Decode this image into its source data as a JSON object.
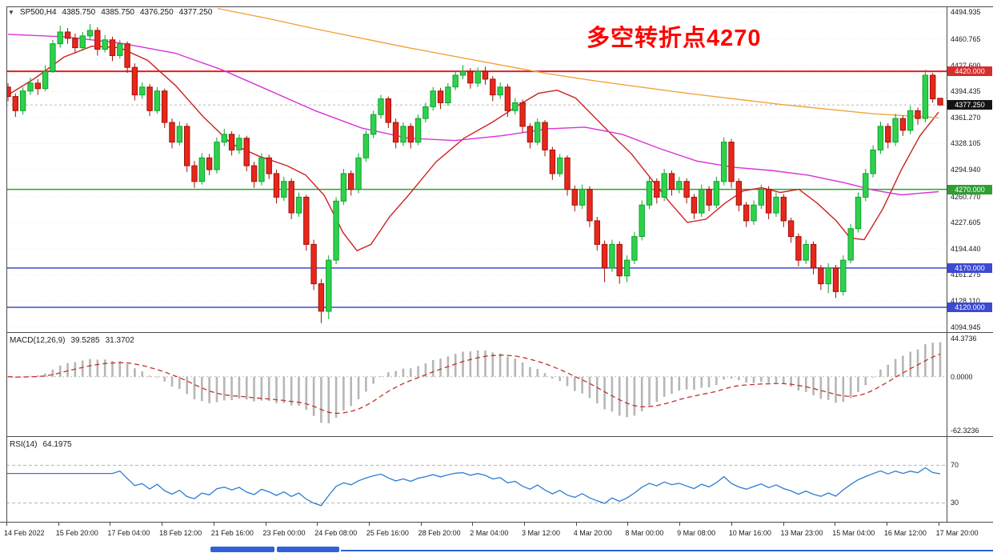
{
  "legend": {
    "symbol_period": "SP500,H4",
    "open": "4385.750",
    "high": "4385.750",
    "low": "4376.250",
    "close": "4377.250"
  },
  "annotation": {
    "text": "多空转折点4270",
    "color": "#ff0000"
  },
  "chart_data": {
    "type": "candlestick",
    "symbol": "SP500",
    "timeframe": "H4",
    "grid": "horizontal-dotted",
    "legend_position": "top-left",
    "price_axis": {
      "view_max": 4501.5,
      "view_min": 4088.5,
      "labels": [
        "4494.935",
        "4460.765",
        "4427.600",
        "4394.435",
        "4361.270",
        "4328.105",
        "4294.940",
        "4260.770",
        "4227.605",
        "4194.440",
        "4161.275",
        "4128.110",
        "4094.945"
      ]
    },
    "time_axis": {
      "labels": [
        "14 Feb 2022",
        "15 Feb 20:00",
        "17 Feb 04:00",
        "18 Feb 12:00",
        "21 Feb 16:00",
        "23 Feb 00:00",
        "24 Feb 08:00",
        "25 Feb 16:00",
        "28 Feb 20:00",
        "2 Mar 04:00",
        "3 Mar 12:00",
        "4 Mar 20:00",
        "8 Mar 00:00",
        "9 Mar 08:00",
        "10 Mar 16:00",
        "13 Mar 23:00",
        "15 Mar 04:00",
        "16 Mar 12:00",
        "17 Mar 20:00"
      ]
    },
    "up_color": "#2fd14c",
    "up_stroke": "#0da32e",
    "down_color": "#e8271c",
    "down_stroke": "#a01208",
    "candles": [
      [
        4400,
        4405,
        4382,
        4388
      ],
      [
        4388,
        4392,
        4362,
        4370
      ],
      [
        4370,
        4400,
        4365,
        4395
      ],
      [
        4395,
        4412,
        4390,
        4405
      ],
      [
        4405,
        4410,
        4390,
        4398
      ],
      [
        4398,
        4428,
        4395,
        4420
      ],
      [
        4420,
        4460,
        4418,
        4455
      ],
      [
        4455,
        4478,
        4450,
        4470
      ],
      [
        4470,
        4475,
        4455,
        4462
      ],
      [
        4462,
        4468,
        4443,
        4450
      ],
      [
        4450,
        4470,
        4446,
        4465
      ],
      [
        4465,
        4480,
        4460,
        4472
      ],
      [
        4472,
        4476,
        4440,
        4448
      ],
      [
        4448,
        4466,
        4444,
        4460
      ],
      [
        4460,
        4464,
        4433,
        4440
      ],
      [
        4440,
        4460,
        4436,
        4455
      ],
      [
        4455,
        4458,
        4418,
        4425
      ],
      [
        4425,
        4430,
        4383,
        4390
      ],
      [
        4390,
        4406,
        4385,
        4400
      ],
      [
        4400,
        4404,
        4363,
        4370
      ],
      [
        4370,
        4400,
        4366,
        4395
      ],
      [
        4395,
        4398,
        4348,
        4355
      ],
      [
        4355,
        4360,
        4322,
        4330
      ],
      [
        4330,
        4356,
        4326,
        4350
      ],
      [
        4350,
        4354,
        4292,
        4300
      ],
      [
        4300,
        4306,
        4272,
        4280
      ],
      [
        4280,
        4316,
        4276,
        4310
      ],
      [
        4310,
        4315,
        4288,
        4295
      ],
      [
        4295,
        4336,
        4290,
        4330
      ],
      [
        4330,
        4347,
        4325,
        4340
      ],
      [
        4340,
        4344,
        4313,
        4320
      ],
      [
        4320,
        4340,
        4315,
        4335
      ],
      [
        4335,
        4338,
        4293,
        4300
      ],
      [
        4300,
        4305,
        4272,
        4280
      ],
      [
        4280,
        4316,
        4275,
        4310
      ],
      [
        4310,
        4314,
        4283,
        4290
      ],
      [
        4290,
        4295,
        4252,
        4260
      ],
      [
        4260,
        4286,
        4255,
        4280
      ],
      [
        4280,
        4284,
        4232,
        4240
      ],
      [
        4240,
        4266,
        4235,
        4260
      ],
      [
        4260,
        4263,
        4192,
        4200
      ],
      [
        4200,
        4206,
        4142,
        4150
      ],
      [
        4150,
        4156,
        4100,
        4115
      ],
      [
        4115,
        4186,
        4105,
        4180
      ],
      [
        4180,
        4260,
        4175,
        4255
      ],
      [
        4255,
        4296,
        4250,
        4290
      ],
      [
        4290,
        4294,
        4262,
        4270
      ],
      [
        4270,
        4316,
        4265,
        4310
      ],
      [
        4310,
        4345,
        4305,
        4340
      ],
      [
        4340,
        4370,
        4335,
        4365
      ],
      [
        4365,
        4390,
        4360,
        4385
      ],
      [
        4385,
        4388,
        4348,
        4355
      ],
      [
        4355,
        4360,
        4322,
        4330
      ],
      [
        4330,
        4355,
        4325,
        4350
      ],
      [
        4350,
        4354,
        4322,
        4330
      ],
      [
        4330,
        4365,
        4326,
        4360
      ],
      [
        4360,
        4380,
        4355,
        4375
      ],
      [
        4375,
        4400,
        4370,
        4395
      ],
      [
        4395,
        4399,
        4372,
        4380
      ],
      [
        4380,
        4405,
        4376,
        4400
      ],
      [
        4400,
        4420,
        4396,
        4415
      ],
      [
        4415,
        4428,
        4410,
        4420
      ],
      [
        4420,
        4424,
        4398,
        4405
      ],
      [
        4405,
        4425,
        4400,
        4420
      ],
      [
        4420,
        4426,
        4403,
        4410
      ],
      [
        4410,
        4414,
        4382,
        4390
      ],
      [
        4390,
        4406,
        4385,
        4400
      ],
      [
        4400,
        4404,
        4362,
        4370
      ],
      [
        4370,
        4386,
        4365,
        4380
      ],
      [
        4380,
        4384,
        4342,
        4350
      ],
      [
        4350,
        4354,
        4322,
        4330
      ],
      [
        4330,
        4360,
        4326,
        4355
      ],
      [
        4355,
        4358,
        4312,
        4320
      ],
      [
        4320,
        4324,
        4282,
        4290
      ],
      [
        4290,
        4315,
        4286,
        4310
      ],
      [
        4310,
        4313,
        4262,
        4270
      ],
      [
        4270,
        4275,
        4242,
        4250
      ],
      [
        4250,
        4276,
        4245,
        4270
      ],
      [
        4270,
        4274,
        4222,
        4230
      ],
      [
        4230,
        4235,
        4192,
        4200
      ],
      [
        4200,
        4205,
        4152,
        4170
      ],
      [
        4170,
        4206,
        4165,
        4200
      ],
      [
        4200,
        4204,
        4150,
        4160
      ],
      [
        4160,
        4186,
        4152,
        4180
      ],
      [
        4180,
        4216,
        4175,
        4210
      ],
      [
        4210,
        4256,
        4205,
        4250
      ],
      [
        4250,
        4286,
        4245,
        4280
      ],
      [
        4280,
        4284,
        4252,
        4260
      ],
      [
        4260,
        4296,
        4255,
        4290
      ],
      [
        4290,
        4294,
        4262,
        4270
      ],
      [
        4270,
        4286,
        4265,
        4280
      ],
      [
        4280,
        4284,
        4252,
        4260
      ],
      [
        4260,
        4264,
        4232,
        4240
      ],
      [
        4240,
        4276,
        4235,
        4270
      ],
      [
        4270,
        4274,
        4242,
        4250
      ],
      [
        4250,
        4286,
        4246,
        4280
      ],
      [
        4280,
        4336,
        4275,
        4330
      ],
      [
        4330,
        4334,
        4272,
        4280
      ],
      [
        4280,
        4284,
        4242,
        4250
      ],
      [
        4250,
        4254,
        4222,
        4230
      ],
      [
        4230,
        4256,
        4225,
        4250
      ],
      [
        4250,
        4276,
        4245,
        4270
      ],
      [
        4270,
        4274,
        4232,
        4240
      ],
      [
        4240,
        4266,
        4235,
        4260
      ],
      [
        4260,
        4264,
        4222,
        4230
      ],
      [
        4230,
        4234,
        4202,
        4210
      ],
      [
        4210,
        4214,
        4172,
        4180
      ],
      [
        4180,
        4206,
        4175,
        4200
      ],
      [
        4200,
        4204,
        4162,
        4170
      ],
      [
        4170,
        4174,
        4142,
        4150
      ],
      [
        4150,
        4176,
        4138,
        4170
      ],
      [
        4170,
        4174,
        4132,
        4140
      ],
      [
        4140,
        4186,
        4135,
        4180
      ],
      [
        4180,
        4226,
        4176,
        4220
      ],
      [
        4220,
        4266,
        4215,
        4260
      ],
      [
        4260,
        4296,
        4255,
        4290
      ],
      [
        4290,
        4326,
        4285,
        4320
      ],
      [
        4320,
        4356,
        4315,
        4350
      ],
      [
        4350,
        4354,
        4322,
        4330
      ],
      [
        4330,
        4366,
        4325,
        4360
      ],
      [
        4360,
        4364,
        4338,
        4345
      ],
      [
        4345,
        4376,
        4340,
        4370
      ],
      [
        4370,
        4374,
        4352,
        4360
      ],
      [
        4360,
        4422,
        4355,
        4415
      ],
      [
        4415,
        4418,
        4380,
        4385
      ],
      [
        4385.75,
        4385.75,
        4376.25,
        4377.25
      ]
    ],
    "moving_averages": [
      {
        "name": "ma-fast-red",
        "color": "#cf2020",
        "points": [
          [
            0,
            4390
          ],
          [
            0.03,
            4412
          ],
          [
            0.06,
            4438
          ],
          [
            0.09,
            4452
          ],
          [
            0.12,
            4450
          ],
          [
            0.15,
            4434
          ],
          [
            0.18,
            4402
          ],
          [
            0.21,
            4362
          ],
          [
            0.24,
            4328
          ],
          [
            0.27,
            4312
          ],
          [
            0.3,
            4300
          ],
          [
            0.32,
            4288
          ],
          [
            0.34,
            4262
          ],
          [
            0.36,
            4215
          ],
          [
            0.375,
            4192
          ],
          [
            0.39,
            4200
          ],
          [
            0.41,
            4235
          ],
          [
            0.43,
            4262
          ],
          [
            0.46,
            4305
          ],
          [
            0.49,
            4335
          ],
          [
            0.52,
            4355
          ],
          [
            0.55,
            4378
          ],
          [
            0.57,
            4392
          ],
          [
            0.59,
            4396
          ],
          [
            0.61,
            4386
          ],
          [
            0.63,
            4362
          ],
          [
            0.65,
            4338
          ],
          [
            0.67,
            4315
          ],
          [
            0.69,
            4285
          ],
          [
            0.71,
            4255
          ],
          [
            0.73,
            4228
          ],
          [
            0.75,
            4232
          ],
          [
            0.77,
            4252
          ],
          [
            0.79,
            4268
          ],
          [
            0.81,
            4272
          ],
          [
            0.83,
            4266
          ],
          [
            0.85,
            4270
          ],
          [
            0.87,
            4252
          ],
          [
            0.89,
            4230
          ],
          [
            0.905,
            4208
          ],
          [
            0.92,
            4206
          ],
          [
            0.94,
            4245
          ],
          [
            0.96,
            4295
          ],
          [
            0.98,
            4338
          ],
          [
            1,
            4368
          ]
        ]
      },
      {
        "name": "ma-medium-magenta",
        "color": "#d932d9",
        "points": [
          [
            0,
            4467
          ],
          [
            0.06,
            4464
          ],
          [
            0.12,
            4456
          ],
          [
            0.18,
            4443
          ],
          [
            0.23,
            4422
          ],
          [
            0.28,
            4396
          ],
          [
            0.33,
            4370
          ],
          [
            0.38,
            4348
          ],
          [
            0.43,
            4335
          ],
          [
            0.48,
            4332
          ],
          [
            0.53,
            4338
          ],
          [
            0.58,
            4347
          ],
          [
            0.62,
            4349
          ],
          [
            0.66,
            4340
          ],
          [
            0.7,
            4322
          ],
          [
            0.74,
            4306
          ],
          [
            0.78,
            4298
          ],
          [
            0.82,
            4294
          ],
          [
            0.86,
            4288
          ],
          [
            0.9,
            4278
          ],
          [
            0.93,
            4269
          ],
          [
            0.96,
            4263
          ],
          [
            1,
            4267
          ]
        ]
      },
      {
        "name": "ma-slow-orange",
        "color": "#f2a33c",
        "points": [
          [
            0.225,
            4500
          ],
          [
            0.28,
            4487
          ],
          [
            0.33,
            4474
          ],
          [
            0.38,
            4462
          ],
          [
            0.43,
            4450
          ],
          [
            0.48,
            4439
          ],
          [
            0.53,
            4428
          ],
          [
            0.58,
            4417
          ],
          [
            0.63,
            4408
          ],
          [
            0.68,
            4400
          ],
          [
            0.73,
            4392
          ],
          [
            0.78,
            4385
          ],
          [
            0.83,
            4378
          ],
          [
            0.88,
            4372
          ],
          [
            0.93,
            4366
          ],
          [
            1,
            4361
          ]
        ]
      }
    ],
    "hlines": [
      {
        "price": 4420.0,
        "label": "4420.000",
        "color": "#e02020",
        "badge_color": "#d32f2f",
        "width": 2
      },
      {
        "price": 4270.0,
        "label": "4270.000",
        "color": "#2fa12f",
        "badge_color": "#2f9e33",
        "width": 1.5
      },
      {
        "price": 4170.0,
        "label": "4170.000",
        "color": "#3c4ad0",
        "badge_color": "#3c4ad0",
        "width": 1.5
      },
      {
        "price": 4120.0,
        "label": "4120.000",
        "color": "#3c4ad0",
        "badge_color": "#3c4ad0",
        "width": 1.5
      }
    ],
    "current_price": {
      "value": 4377.25,
      "label": "4377.250",
      "badge_color": "#141414"
    },
    "indicators": {
      "macd": {
        "label": "MACD(12,26,9)",
        "value_main": "39.5285",
        "value_signal": "31.3702",
        "fast": 12,
        "slow": 26,
        "signal": 9,
        "axis_labels": [
          "44.3736",
          "0.0000",
          "-62.3236"
        ],
        "histogram_color": "#b6b6b6",
        "signal_color": "#c2302a"
      },
      "rsi": {
        "label": "RSI(14)",
        "value": "64.1975",
        "period": 14,
        "levels": [
          70,
          30
        ],
        "color": "#2b7cd3"
      }
    }
  }
}
